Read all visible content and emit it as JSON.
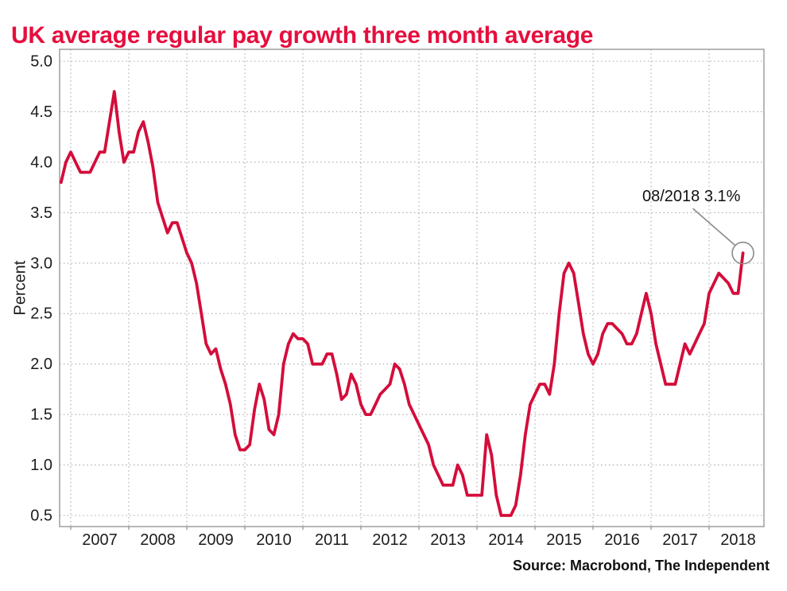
{
  "page": {
    "title": "UK average regular pay growth three month average",
    "source": "Source: Macrobond, The Independent"
  },
  "colors": {
    "title_red": "#e60e3e",
    "line_red": "#d40d3a",
    "grid_gray": "#a8a8a8",
    "border_gray": "#989898",
    "annotation_gray": "#8a8a8a",
    "axis_text": "#1c1c1c"
  },
  "chart_data": {
    "type": "line",
    "title": "UK average regular pay growth three month average",
    "series_name": "UK average regular pay growth, three month average (%)",
    "xlabel": "",
    "ylabel": "Percent",
    "ylim": [
      0.5,
      5.0
    ],
    "grid": "dotted",
    "legend_position": "none",
    "y_ticks": [
      "5.0",
      "4.5",
      "4.0",
      "3.5",
      "3.0",
      "2.5",
      "2.0",
      "1.5",
      "1.0",
      "0.5"
    ],
    "x_ticks": [
      "2007",
      "2008",
      "2009",
      "2010",
      "2011",
      "2012",
      "2013",
      "2014",
      "2015",
      "2016",
      "2017",
      "2018"
    ],
    "x": [
      "2006-11",
      "2006-12",
      "2007-01",
      "2007-02",
      "2007-03",
      "2007-04",
      "2007-05",
      "2007-06",
      "2007-07",
      "2007-08",
      "2007-09",
      "2007-10",
      "2007-11",
      "2007-12",
      "2008-01",
      "2008-02",
      "2008-03",
      "2008-04",
      "2008-05",
      "2008-06",
      "2008-07",
      "2008-08",
      "2008-09",
      "2008-10",
      "2008-11",
      "2008-12",
      "2009-01",
      "2009-02",
      "2009-03",
      "2009-04",
      "2009-05",
      "2009-06",
      "2009-07",
      "2009-08",
      "2009-09",
      "2009-10",
      "2009-11",
      "2009-12",
      "2010-01",
      "2010-02",
      "2010-03",
      "2010-04",
      "2010-05",
      "2010-06",
      "2010-07",
      "2010-08",
      "2010-09",
      "2010-10",
      "2010-11",
      "2010-12",
      "2011-01",
      "2011-02",
      "2011-03",
      "2011-04",
      "2011-05",
      "2011-06",
      "2011-07",
      "2011-08",
      "2011-09",
      "2011-10",
      "2011-11",
      "2011-12",
      "2012-01",
      "2012-02",
      "2012-03",
      "2012-04",
      "2012-05",
      "2012-06",
      "2012-07",
      "2012-08",
      "2012-09",
      "2012-10",
      "2012-11",
      "2012-12",
      "2013-01",
      "2013-02",
      "2013-03",
      "2013-04",
      "2013-05",
      "2013-06",
      "2013-07",
      "2013-08",
      "2013-09",
      "2013-10",
      "2013-11",
      "2013-12",
      "2014-01",
      "2014-02",
      "2014-03",
      "2014-04",
      "2014-05",
      "2014-06",
      "2014-07",
      "2014-08",
      "2014-09",
      "2014-10",
      "2014-11",
      "2014-12",
      "2015-01",
      "2015-02",
      "2015-03",
      "2015-04",
      "2015-05",
      "2015-06",
      "2015-07",
      "2015-08",
      "2015-09",
      "2015-10",
      "2015-11",
      "2015-12",
      "2016-01",
      "2016-02",
      "2016-03",
      "2016-04",
      "2016-05",
      "2016-06",
      "2016-07",
      "2016-08",
      "2016-09",
      "2016-10",
      "2016-11",
      "2016-12",
      "2017-01",
      "2017-02",
      "2017-03",
      "2017-04",
      "2017-05",
      "2017-06",
      "2017-07",
      "2017-08",
      "2017-09",
      "2017-10",
      "2017-11",
      "2017-12",
      "2018-01",
      "2018-02",
      "2018-03",
      "2018-04",
      "2018-05",
      "2018-06",
      "2018-07",
      "2018-08"
    ],
    "values": [
      3.8,
      4.0,
      4.1,
      4.0,
      3.9,
      3.9,
      3.9,
      4.0,
      4.1,
      4.1,
      4.4,
      4.7,
      4.3,
      4.0,
      4.1,
      4.1,
      4.3,
      4.4,
      4.2,
      3.95,
      3.6,
      3.45,
      3.3,
      3.4,
      3.4,
      3.25,
      3.1,
      3.0,
      2.8,
      2.5,
      2.2,
      2.1,
      2.15,
      1.95,
      1.8,
      1.6,
      1.3,
      1.15,
      1.15,
      1.2,
      1.55,
      1.8,
      1.65,
      1.35,
      1.3,
      1.5,
      2.0,
      2.2,
      2.3,
      2.25,
      2.25,
      2.2,
      2.0,
      2.0,
      2.0,
      2.1,
      2.1,
      1.9,
      1.65,
      1.7,
      1.9,
      1.8,
      1.6,
      1.5,
      1.5,
      1.6,
      1.7,
      1.75,
      1.8,
      2.0,
      1.95,
      1.8,
      1.6,
      1.5,
      1.4,
      1.3,
      1.2,
      1.0,
      0.9,
      0.8,
      0.8,
      0.8,
      1.0,
      0.9,
      0.7,
      0.7,
      0.7,
      0.7,
      1.3,
      1.1,
      0.7,
      0.5,
      0.5,
      0.5,
      0.6,
      0.9,
      1.3,
      1.6,
      1.7,
      1.8,
      1.8,
      1.7,
      2.0,
      2.5,
      2.9,
      3.0,
      2.9,
      2.6,
      2.3,
      2.1,
      2.0,
      2.1,
      2.3,
      2.4,
      2.4,
      2.35,
      2.3,
      2.2,
      2.2,
      2.3,
      2.5,
      2.7,
      2.5,
      2.2,
      2.0,
      1.8,
      1.8,
      1.8,
      2.0,
      2.2,
      2.1,
      2.2,
      2.3,
      2.4,
      2.7,
      2.8,
      2.9,
      2.85,
      2.8,
      2.7,
      2.7,
      3.1
    ],
    "annotation": {
      "label": "08/2018 3.1%",
      "x": "2018-08",
      "y": 3.1
    }
  }
}
